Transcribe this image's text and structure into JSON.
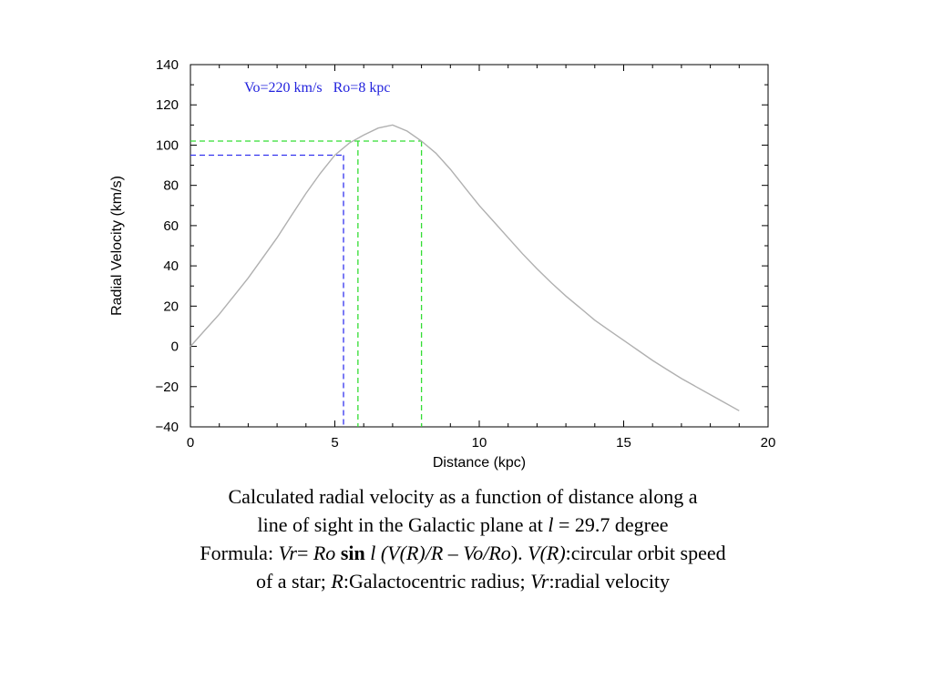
{
  "chart_data": {
    "type": "line",
    "xlabel": "Distance (kpc)",
    "ylabel": "Radial Velocity (km/s)",
    "xlim": [
      0,
      20
    ],
    "ylim": [
      -40,
      140
    ],
    "xticks": [
      0,
      5,
      10,
      15,
      20
    ],
    "yticks": [
      -40,
      -20,
      0,
      20,
      40,
      60,
      80,
      100,
      120,
      140
    ],
    "xtick_labels": [
      "0",
      "5",
      "10",
      "15",
      "20"
    ],
    "ytick_labels": [
      "−40",
      "−20",
      "0",
      "20",
      "40",
      "60",
      "80",
      "100",
      "120",
      "140"
    ],
    "grid": false,
    "annotation": "Vo=220 km/s   Ro=8 kpc",
    "annotation_color": "#2222dd",
    "line_color": "#b0b0b0",
    "series": [
      {
        "x": [
          0,
          0.5,
          1,
          1.5,
          2,
          2.5,
          3,
          3.5,
          4,
          4.5,
          5,
          5.5,
          6,
          6.5,
          7,
          7.5,
          8,
          8.5,
          9,
          9.5,
          10,
          10.5,
          11,
          11.5,
          12,
          12.5,
          13,
          13.5,
          14,
          14.5,
          15,
          15.5,
          16,
          16.5,
          17,
          17.5,
          18,
          18.5,
          19
        ],
        "y": [
          0,
          8,
          16,
          25,
          34,
          44,
          54,
          65,
          76,
          86,
          95,
          101,
          105,
          108.5,
          110,
          107,
          102,
          96,
          88,
          79,
          70,
          62,
          54,
          46,
          38.5,
          31.5,
          25,
          19,
          13,
          8,
          3,
          -2,
          -7,
          -11.5,
          -16,
          -20,
          -24,
          -28,
          -32
        ]
      }
    ],
    "reference_lines": [
      {
        "y": 95,
        "x": 5.3,
        "color": "#3333ee"
      },
      {
        "y": 102,
        "x_values": [
          5.8,
          8.0
        ],
        "color": "#33dd33"
      }
    ]
  },
  "caption": {
    "line1": "Calculated radial velocity as a function of distance along a",
    "line2_pre": "line of sight in the Galactic plane at ",
    "line2_l": "l",
    "line2_post": " = 29.7 degree",
    "line3_label": "Formula: ",
    "line3_vr": "Vr",
    "line3_eq": "= ",
    "line3_ro": "Ro",
    "line3_sin": " sin",
    "line3_expr": " l (V(R)/R – Vo/Ro",
    "line3_close": "). ",
    "line3_vr2": "V(R)",
    "line3_desc": ":circular orbit speed",
    "line4_pre": "of a star; ",
    "line4_r": "R",
    "line4_rdesc": ":Galactocentric radius; ",
    "line4_vr": "Vr",
    "line4_vrdesc": ":radial velocity"
  }
}
